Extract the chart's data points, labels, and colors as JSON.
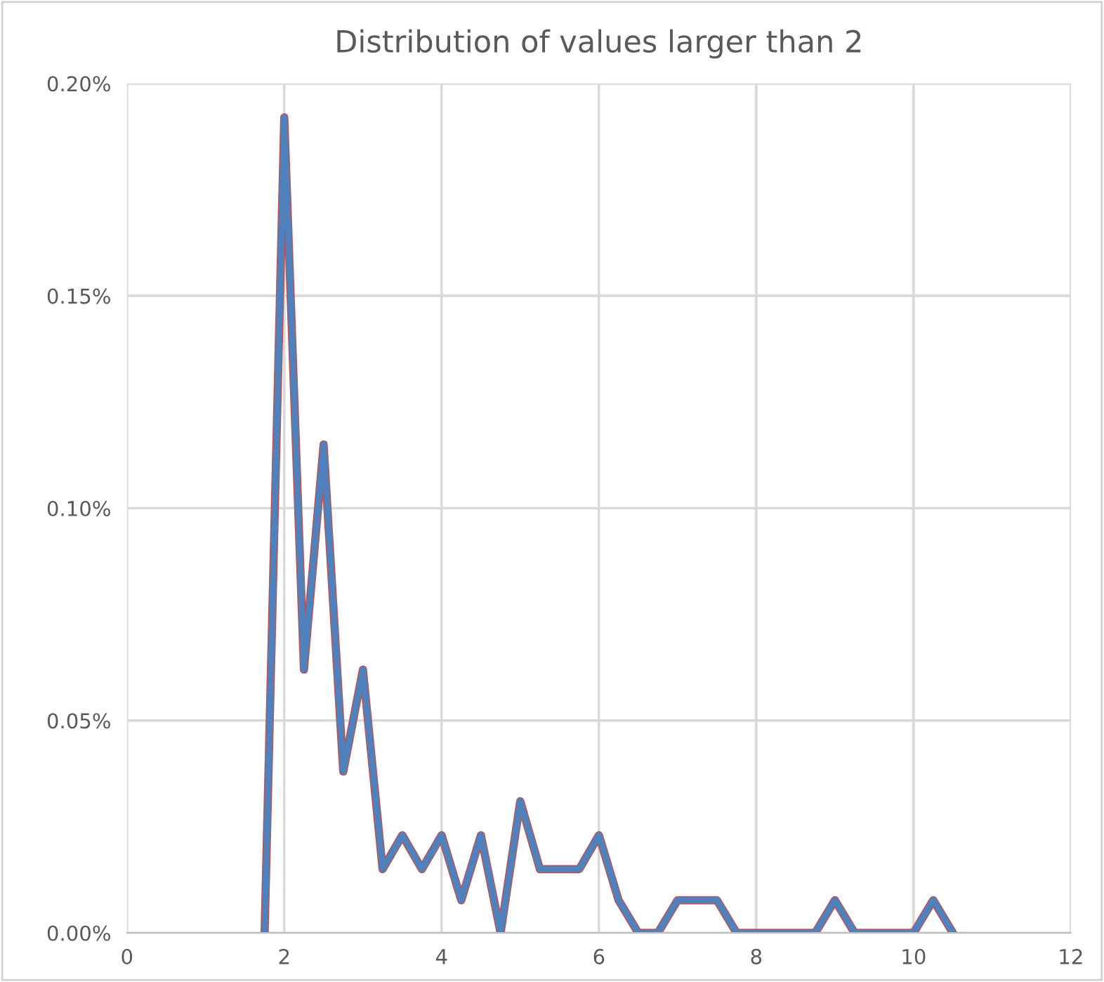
{
  "chart_data": {
    "type": "line",
    "title": "Distribution of values larger than 2",
    "x": [
      1.75,
      2,
      2.25,
      2.5,
      2.75,
      3,
      3.25,
      3.5,
      3.75,
      4,
      4.25,
      4.5,
      4.75,
      5,
      5.25,
      5.5,
      5.75,
      6,
      6.25,
      6.5,
      6.75,
      7,
      7.25,
      7.5,
      7.75,
      8,
      8.25,
      8.5,
      8.75,
      9,
      9.25,
      9.5,
      9.75,
      10,
      10.25,
      10.5
    ],
    "series": [
      {
        "color": "#4f81bd",
        "values": [
          0,
          0.192,
          0.062,
          0.115,
          0.038,
          0.062,
          0.015,
          0.023,
          0.015,
          0.023,
          0.0077,
          0.023,
          0,
          0.031,
          0.015,
          0.015,
          0.015,
          0.023,
          0.0077,
          0,
          0,
          0.0077,
          0.0077,
          0.0077,
          0,
          0,
          0,
          0,
          0,
          0.0077,
          0,
          0,
          0,
          0,
          0.0077,
          0
        ]
      }
    ],
    "xlim": [
      0,
      12
    ],
    "xticks": [
      0,
      2,
      4,
      6,
      8,
      10,
      12
    ],
    "ylim": [
      0,
      0.2
    ],
    "yticks": [
      {
        "value": 0,
        "label": "0.00%"
      },
      {
        "value": 0.05,
        "label": "0.05%"
      },
      {
        "value": 0.1,
        "label": "0.10%"
      },
      {
        "value": 0.15,
        "label": "0.15%"
      },
      {
        "value": 0.2,
        "label": "0.20%"
      }
    ],
    "grid": true,
    "legend": false,
    "marker": "none",
    "line_style": "solid"
  }
}
